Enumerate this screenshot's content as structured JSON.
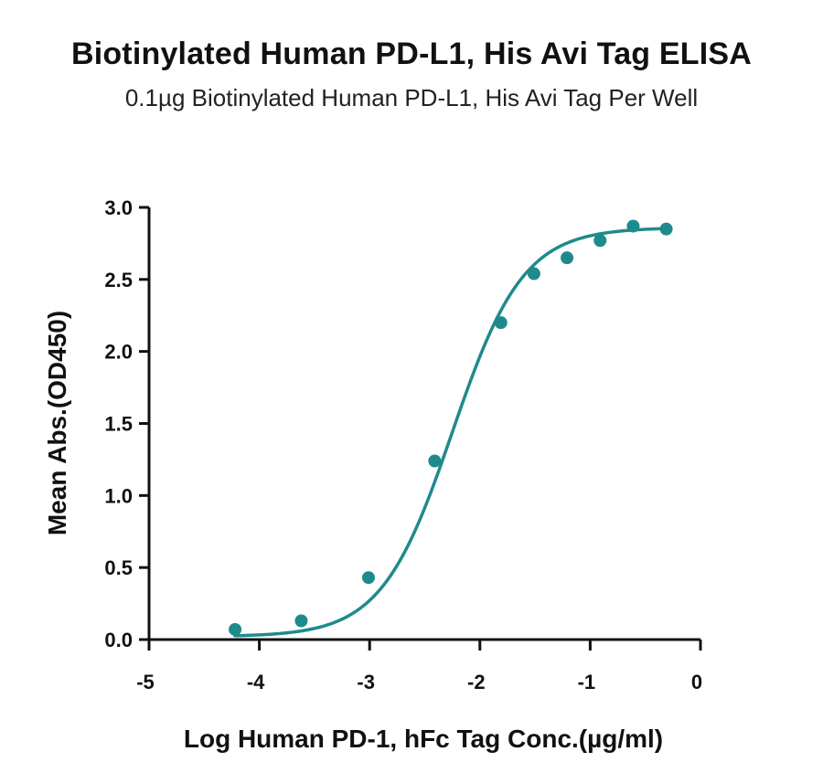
{
  "chart_data": {
    "type": "scatter",
    "title": "Biotinylated Human PD-L1, His Avi Tag ELISA",
    "subtitle": "0.1µg Biotinylated Human PD-L1, His Avi Tag Per Well",
    "xlabel": "Log Human PD-1, hFc Tag Conc.(µg/ml)",
    "ylabel": "Mean Abs.(OD450)",
    "xlim": [
      -5,
      0
    ],
    "ylim": [
      0,
      3.0
    ],
    "x_ticks": [
      "-5",
      "-4",
      "-3",
      "-2",
      "-1",
      "0"
    ],
    "y_ticks": [
      "0.0",
      "0.5",
      "1.0",
      "1.5",
      "2.0",
      "2.5",
      "3.0"
    ],
    "grid": false,
    "series": [
      {
        "color": "#1f8a8c",
        "x": [
          -4.22,
          -3.62,
          -3.01,
          -2.41,
          -1.81,
          -1.51,
          -1.21,
          -0.91,
          -0.61,
          -0.31
        ],
        "y": [
          0.07,
          0.13,
          0.43,
          1.24,
          2.2,
          2.54,
          2.65,
          2.77,
          2.87,
          2.85
        ],
        "fit": {
          "bottom": 0.02,
          "top": 2.86,
          "logEC50": -2.25,
          "hill": 1.35
        }
      }
    ]
  }
}
